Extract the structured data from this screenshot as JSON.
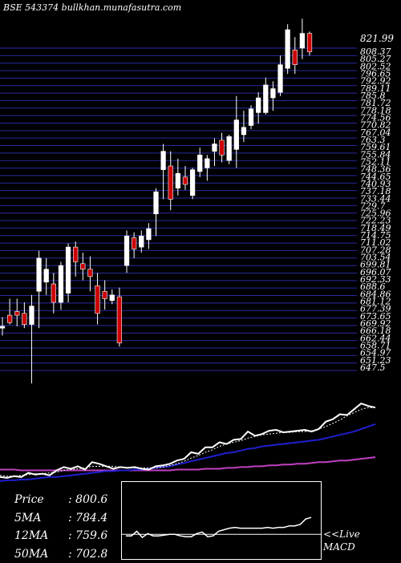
{
  "header": {
    "exchange": "BSE",
    "code": "543374",
    "site": "bullkhan.munafasutra.com"
  },
  "price_labels": {
    "top": "821.99",
    "stack": [
      "808.37",
      "805.27",
      "802.52",
      "796.65",
      "792.92",
      "789.11",
      "785.8",
      "781.72",
      "778.18",
      "774.56",
      "770.82",
      "767.04",
      "763.3",
      "759.61",
      "755.84",
      "752.11",
      "748.36",
      "744.65",
      "740.93",
      "737.18",
      "733.44",
      "729.7",
      "725.96",
      "722.23",
      "718.49",
      "714.75",
      "711.02",
      "707.28",
      "703.54",
      "699.81",
      "696.07",
      "692.33",
      "688.6",
      "684.86",
      "681.12",
      "677.39",
      "673.65",
      "669.92",
      "666.18",
      "662.44",
      "658.71",
      "654.97",
      "651.23",
      "647.5"
    ]
  },
  "stats": {
    "price": {
      "label": "Price",
      "value": "800.6"
    },
    "ma5": {
      "label": "5MA",
      "value": "784.4"
    },
    "ma12": {
      "label": "12MA",
      "value": "759.6"
    },
    "ma50": {
      "label": "50MA",
      "value": "702.8"
    }
  },
  "live_label": {
    "line1": "<<Live",
    "line2": "MACD"
  },
  "colors": {
    "background": "#000000",
    "grid": "#2a2aa0",
    "up": "#ffffff",
    "down": "#cc0000",
    "ma_fast": "#ffffff",
    "ma_mid": "#1f1fd0",
    "ma_slow": "#c040c0"
  },
  "chart_data": {
    "type": "candlestick",
    "ylim": [
      647,
      822
    ],
    "candles": [
      {
        "o": 670,
        "h": 676,
        "l": 666,
        "c": 671
      },
      {
        "o": 677,
        "h": 686,
        "l": 672,
        "c": 673
      },
      {
        "o": 679,
        "h": 686,
        "l": 671,
        "c": 677
      },
      {
        "o": 678,
        "h": 684,
        "l": 670,
        "c": 672
      },
      {
        "o": 672,
        "h": 688,
        "l": 640,
        "c": 682
      },
      {
        "o": 690,
        "h": 712,
        "l": 670,
        "c": 708
      },
      {
        "o": 695,
        "h": 708,
        "l": 688,
        "c": 702
      },
      {
        "o": 694,
        "h": 700,
        "l": 678,
        "c": 684
      },
      {
        "o": 684,
        "h": 706,
        "l": 680,
        "c": 704
      },
      {
        "o": 689,
        "h": 716,
        "l": 684,
        "c": 714
      },
      {
        "o": 714,
        "h": 717,
        "l": 698,
        "c": 706
      },
      {
        "o": 705,
        "h": 711,
        "l": 696,
        "c": 702
      },
      {
        "o": 702,
        "h": 709,
        "l": 690,
        "c": 698
      },
      {
        "o": 693,
        "h": 700,
        "l": 672,
        "c": 678
      },
      {
        "o": 690,
        "h": 696,
        "l": 680,
        "c": 686
      },
      {
        "o": 685,
        "h": 691,
        "l": 683,
        "c": 688
      },
      {
        "o": 687,
        "h": 692,
        "l": 660,
        "c": 662
      },
      {
        "o": 704,
        "h": 723,
        "l": 700,
        "c": 720
      },
      {
        "o": 719,
        "h": 722,
        "l": 708,
        "c": 713
      },
      {
        "o": 714,
        "h": 723,
        "l": 711,
        "c": 720
      },
      {
        "o": 718,
        "h": 727,
        "l": 713,
        "c": 724
      },
      {
        "o": 732,
        "h": 746,
        "l": 720,
        "c": 744
      },
      {
        "o": 756,
        "h": 770,
        "l": 740,
        "c": 766
      },
      {
        "o": 758,
        "h": 766,
        "l": 734,
        "c": 740
      },
      {
        "o": 746,
        "h": 762,
        "l": 742,
        "c": 754
      },
      {
        "o": 752,
        "h": 758,
        "l": 745,
        "c": 748
      },
      {
        "o": 742,
        "h": 757,
        "l": 740,
        "c": 756
      },
      {
        "o": 755,
        "h": 768,
        "l": 752,
        "c": 764
      },
      {
        "o": 757,
        "h": 764,
        "l": 750,
        "c": 762
      },
      {
        "o": 766,
        "h": 773,
        "l": 758,
        "c": 770
      },
      {
        "o": 772,
        "h": 776,
        "l": 760,
        "c": 764
      },
      {
        "o": 761,
        "h": 775,
        "l": 759,
        "c": 774
      },
      {
        "o": 767,
        "h": 796,
        "l": 757,
        "c": 783
      },
      {
        "o": 775,
        "h": 788,
        "l": 771,
        "c": 779
      },
      {
        "o": 780,
        "h": 791,
        "l": 778,
        "c": 789
      },
      {
        "o": 787,
        "h": 798,
        "l": 781,
        "c": 795
      },
      {
        "o": 787,
        "h": 806,
        "l": 786,
        "c": 802
      },
      {
        "o": 795,
        "h": 804,
        "l": 788,
        "c": 800
      },
      {
        "o": 798,
        "h": 818,
        "l": 796,
        "c": 813
      },
      {
        "o": 811,
        "h": 835,
        "l": 808,
        "c": 832
      },
      {
        "o": 821,
        "h": 828,
        "l": 808,
        "c": 813
      },
      {
        "o": 822,
        "h": 838,
        "l": 816,
        "c": 830
      },
      {
        "o": 830,
        "h": 831,
        "l": 818,
        "c": 820
      }
    ],
    "ma_panel": {
      "ylim": [
        0,
        1
      ],
      "price_line": [
        0.08,
        0.07,
        0.09,
        0.08,
        0.13,
        0.11,
        0.12,
        0.1,
        0.16,
        0.2,
        0.18,
        0.21,
        0.17,
        0.26,
        0.24,
        0.21,
        0.18,
        0.2,
        0.19,
        0.2,
        0.18,
        0.17,
        0.21,
        0.22,
        0.24,
        0.28,
        0.3,
        0.38,
        0.36,
        0.44,
        0.44,
        0.5,
        0.48,
        0.53,
        0.54,
        0.63,
        0.58,
        0.6,
        0.64,
        0.65,
        0.62,
        0.63,
        0.64,
        0.65,
        0.63,
        0.66,
        0.75,
        0.78,
        0.84,
        0.83,
        0.9,
        0.97,
        0.94,
        0.92
      ],
      "ma_fast": [
        0.1,
        0.09,
        0.09,
        0.1,
        0.11,
        0.12,
        0.12,
        0.13,
        0.14,
        0.16,
        0.17,
        0.18,
        0.19,
        0.21,
        0.21,
        0.21,
        0.21,
        0.2,
        0.19,
        0.19,
        0.19,
        0.19,
        0.19,
        0.2,
        0.22,
        0.24,
        0.27,
        0.31,
        0.34,
        0.38,
        0.41,
        0.45,
        0.48,
        0.5,
        0.52,
        0.55,
        0.57,
        0.59,
        0.6,
        0.61,
        0.62,
        0.62,
        0.63,
        0.63,
        0.64,
        0.66,
        0.69,
        0.73,
        0.77,
        0.82,
        0.86,
        0.9,
        0.92,
        0.92
      ],
      "ma_mid": [
        0.03,
        0.04,
        0.04,
        0.05,
        0.05,
        0.06,
        0.07,
        0.08,
        0.08,
        0.09,
        0.1,
        0.11,
        0.12,
        0.13,
        0.14,
        0.15,
        0.15,
        0.16,
        0.16,
        0.17,
        0.17,
        0.18,
        0.19,
        0.2,
        0.21,
        0.23,
        0.25,
        0.27,
        0.29,
        0.31,
        0.33,
        0.35,
        0.37,
        0.38,
        0.4,
        0.42,
        0.43,
        0.45,
        0.46,
        0.47,
        0.48,
        0.49,
        0.5,
        0.51,
        0.52,
        0.53,
        0.55,
        0.57,
        0.59,
        0.61,
        0.63,
        0.66,
        0.69,
        0.72
      ],
      "ma_slow": [
        0.17,
        0.17,
        0.17,
        0.16,
        0.16,
        0.16,
        0.16,
        0.16,
        0.16,
        0.16,
        0.16,
        0.16,
        0.16,
        0.16,
        0.16,
        0.16,
        0.16,
        0.16,
        0.16,
        0.16,
        0.16,
        0.16,
        0.16,
        0.16,
        0.16,
        0.17,
        0.17,
        0.17,
        0.17,
        0.18,
        0.18,
        0.18,
        0.19,
        0.19,
        0.2,
        0.2,
        0.21,
        0.21,
        0.22,
        0.22,
        0.23,
        0.23,
        0.24,
        0.24,
        0.25,
        0.26,
        0.26,
        0.27,
        0.28,
        0.28,
        0.29,
        0.3,
        0.31,
        0.32
      ]
    },
    "macd_panel": {
      "ylim": [
        0,
        1
      ],
      "line": [
        0.3,
        0.3,
        0.36,
        0.28,
        0.33,
        0.3,
        0.3,
        0.31,
        0.32,
        0.32,
        0.3,
        0.29,
        0.29,
        0.33,
        0.35,
        0.29,
        0.3,
        0.36,
        0.38,
        0.4,
        0.41,
        0.4,
        0.4,
        0.4,
        0.4,
        0.4,
        0.41,
        0.4,
        0.41,
        0.41,
        0.43,
        0.43,
        0.45,
        0.52,
        0.54
      ],
      "zero": 0.32
    }
  }
}
